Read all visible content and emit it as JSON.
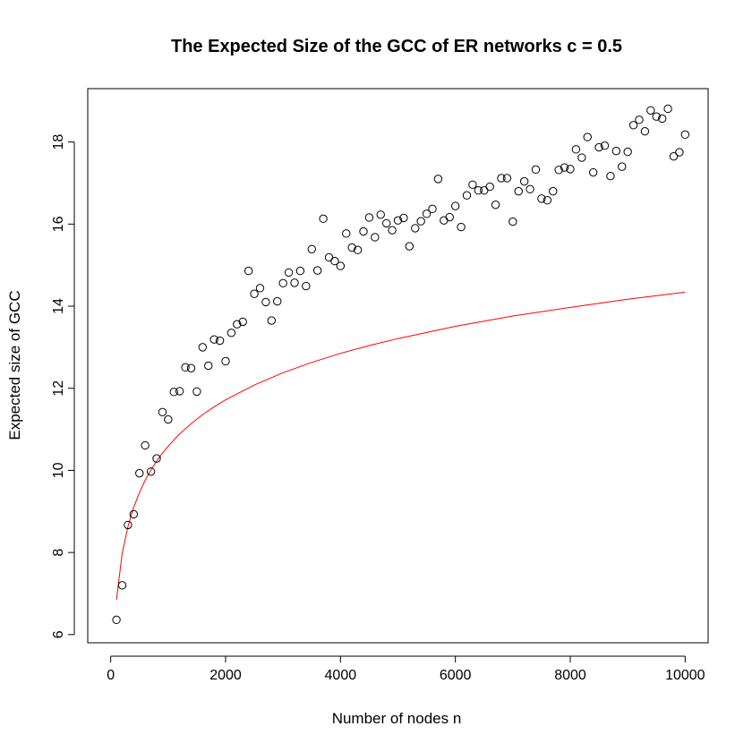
{
  "chart_data": {
    "type": "scatter",
    "title": "The Expected Size of the GCC of ER networks c = 0.5",
    "xlabel": "Number of nodes n",
    "ylabel": "Expected size of GCC",
    "xlim": [
      -400,
      10400
    ],
    "ylim": [
      5.8,
      19.3
    ],
    "x_ticks": [
      0,
      2000,
      4000,
      6000,
      8000,
      10000
    ],
    "y_ticks": [
      6,
      8,
      10,
      12,
      14,
      16,
      18
    ],
    "grid": false,
    "legend": "none",
    "point_color": "#000000",
    "fit_color": "#ff0000",
    "x": [
      100,
      200,
      300,
      400,
      500,
      600,
      700,
      800,
      900,
      1000,
      1100,
      1200,
      1300,
      1400,
      1500,
      1600,
      1700,
      1800,
      1900,
      2000,
      2100,
      2200,
      2300,
      2400,
      2500,
      2600,
      2700,
      2800,
      2900,
      3000,
      3100,
      3200,
      3300,
      3400,
      3500,
      3600,
      3700,
      3800,
      3900,
      4000,
      4100,
      4200,
      4300,
      4400,
      4500,
      4600,
      4700,
      4800,
      4900,
      5000,
      5100,
      5200,
      5300,
      5400,
      5500,
      5600,
      5700,
      5800,
      5900,
      6000,
      6100,
      6200,
      6300,
      6400,
      6500,
      6600,
      6700,
      6800,
      6900,
      7000,
      7100,
      7200,
      7300,
      7400,
      7500,
      7600,
      7700,
      7800,
      7900,
      8000,
      8100,
      8200,
      8300,
      8400,
      8500,
      8600,
      8700,
      8800,
      8900,
      9000,
      9100,
      9200,
      9300,
      9400,
      9500,
      9600,
      9700,
      9800,
      9900,
      10000
    ],
    "y": [
      6.36,
      7.2,
      8.67,
      8.93,
      9.93,
      10.61,
      9.97,
      10.29,
      11.42,
      11.24,
      11.91,
      11.93,
      12.51,
      12.49,
      11.92,
      13.0,
      12.55,
      13.19,
      13.16,
      12.66,
      13.35,
      13.56,
      13.62,
      14.86,
      14.3,
      14.44,
      14.1,
      13.65,
      14.12,
      14.56,
      14.82,
      14.57,
      14.86,
      14.49,
      15.39,
      14.87,
      16.13,
      15.19,
      15.1,
      14.98,
      15.77,
      15.43,
      15.37,
      15.82,
      16.16,
      15.68,
      16.23,
      16.02,
      15.85,
      16.09,
      16.15,
      15.46,
      15.9,
      16.07,
      16.25,
      16.37,
      17.1,
      16.09,
      16.17,
      16.44,
      15.93,
      16.7,
      16.96,
      16.82,
      16.82,
      16.91,
      16.47,
      17.12,
      17.12,
      16.06,
      16.8,
      17.04,
      16.85,
      17.33,
      16.62,
      16.58,
      16.8,
      17.32,
      17.38,
      17.34,
      17.82,
      17.62,
      18.12,
      17.26,
      17.87,
      17.91,
      17.17,
      17.78,
      17.4,
      17.76,
      18.41,
      18.54,
      18.26,
      18.77,
      18.62,
      18.57,
      18.81,
      17.65,
      17.75,
      18.18
    ],
    "fit": {
      "name": "",
      "x": [
        100,
        200,
        300,
        400,
        500,
        600,
        700,
        800,
        900,
        1000,
        1200,
        1400,
        1600,
        1800,
        2000,
        2500,
        3000,
        3500,
        4000,
        4500,
        5000,
        6000,
        7000,
        8000,
        9000,
        10000
      ],
      "y": [
        6.85,
        7.98,
        8.63,
        9.1,
        9.46,
        9.76,
        10.01,
        10.23,
        10.42,
        10.59,
        10.89,
        11.14,
        11.36,
        11.55,
        11.72,
        12.08,
        12.38,
        12.63,
        12.85,
        13.04,
        13.21,
        13.51,
        13.76,
        13.97,
        14.17,
        14.34
      ]
    }
  }
}
